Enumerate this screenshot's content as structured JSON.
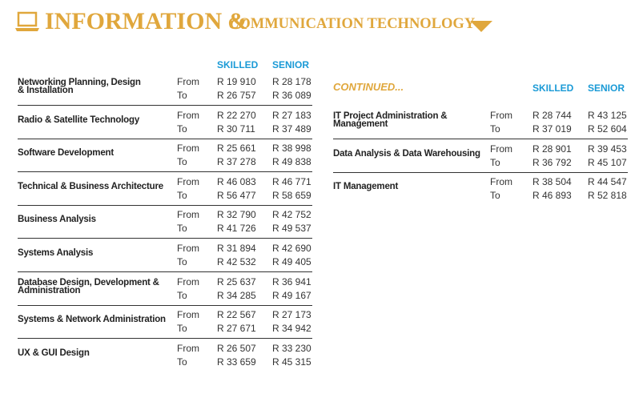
{
  "header": {
    "title_main": "INFORMATION &",
    "title_sub": "COMMUNICATION TECHNOLOGY"
  },
  "left_table": {
    "columns": [
      "SKILLED",
      "SENIOR"
    ],
    "rows": [
      {
        "role": [
          "Networking Planning, Design",
          "& Installation"
        ],
        "from": {
          "label": "From",
          "skilled": "R 19 910",
          "senior": "R 28 178"
        },
        "to": {
          "label": "To",
          "skilled": "R 26 757",
          "senior": "R 36 089"
        }
      },
      {
        "role": [
          "Radio & Satellite Technology"
        ],
        "from": {
          "label": "From",
          "skilled": "R 22 270",
          "senior": "R 27 183"
        },
        "to": {
          "label": "To",
          "skilled": "R 30 711",
          "senior": "R 37 489"
        }
      },
      {
        "role": [
          "Software Development"
        ],
        "from": {
          "label": "From",
          "skilled": "R 25 661",
          "senior": "R 38 998"
        },
        "to": {
          "label": "To",
          "skilled": "R 37 278",
          "senior": "R 49 838"
        }
      },
      {
        "role": [
          "Technical & Business Architecture"
        ],
        "from": {
          "label": "From",
          "skilled": "R 46 083",
          "senior": "R 46 771"
        },
        "to": {
          "label": "To",
          "skilled": "R 56 477",
          "senior": "R 58 659"
        }
      },
      {
        "role": [
          "Business Analysis"
        ],
        "from": {
          "label": "From",
          "skilled": "R 32 790",
          "senior": "R 42 752"
        },
        "to": {
          "label": "To",
          "skilled": "R 41 726",
          "senior": "R 49 537"
        }
      },
      {
        "role": [
          "Systems Analysis"
        ],
        "from": {
          "label": "From",
          "skilled": "R 31 894",
          "senior": "R 42 690"
        },
        "to": {
          "label": "To",
          "skilled": "R 42 532",
          "senior": "R 49 405"
        }
      },
      {
        "role": [
          "Database Design, Development &",
          "Administration"
        ],
        "from": {
          "label": "From",
          "skilled": "R 25 637",
          "senior": "R 36 941"
        },
        "to": {
          "label": "To",
          "skilled": "R 34 285",
          "senior": "R 49 167"
        }
      },
      {
        "role": [
          "Systems & Network Administration"
        ],
        "from": {
          "label": "From",
          "skilled": "R 22 567",
          "senior": "R 27 173"
        },
        "to": {
          "label": "To",
          "skilled": "R 27 671",
          "senior": "R 34 942"
        }
      },
      {
        "role": [
          "UX & GUI Design"
        ],
        "from": {
          "label": "From",
          "skilled": "R 26 507",
          "senior": "R 33 230"
        },
        "to": {
          "label": "To",
          "skilled": "R 33 659",
          "senior": "R 45 315"
        }
      }
    ]
  },
  "right_table": {
    "heading": "CONTINUED...",
    "columns": [
      "SKILLED",
      "SENIOR"
    ],
    "rows": [
      {
        "role": [
          "IT Project Administration &",
          "Management"
        ],
        "from": {
          "label": "From",
          "skilled": "R 28 744",
          "senior": "R 43 125"
        },
        "to": {
          "label": "To",
          "skilled": "R 37 019",
          "senior": "R 52 604"
        }
      },
      {
        "role": [
          "Data Analysis & Data Warehousing"
        ],
        "from": {
          "label": "From",
          "skilled": "R 28 901",
          "senior": "R 39 453"
        },
        "to": {
          "label": "To",
          "skilled": "R 36 792",
          "senior": "R 45 107"
        }
      },
      {
        "role": [
          "IT Management"
        ],
        "from": {
          "label": "From",
          "skilled": "R 38 504",
          "senior": "R 44 547"
        },
        "to": {
          "label": "To",
          "skilled": "R 46 893",
          "senior": "R 52 818"
        }
      }
    ]
  }
}
